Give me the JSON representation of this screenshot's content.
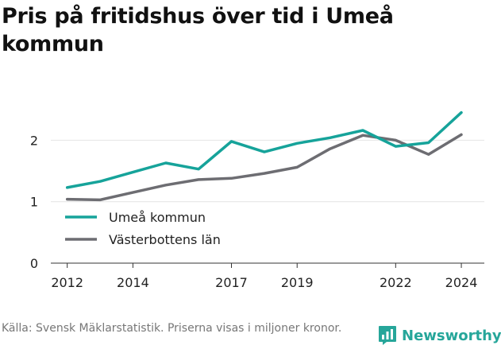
{
  "title": "Pris på fritidshus över tid i Umeå kommun",
  "source": "Källa: Svensk Mäklarstatistik. Priserna visas i miljoner kronor.",
  "brand": {
    "name": "Newsworthy",
    "icon": "newsworthy-logo-icon",
    "color": "#26a69a"
  },
  "chart_data": {
    "type": "line",
    "title": "Pris på fritidshus över tid i Umeå kommun",
    "xlabel": "",
    "ylabel": "",
    "xlim": [
      2011.5,
      2024.7
    ],
    "ylim": [
      0,
      2.6
    ],
    "x_ticks": [
      2012,
      2014,
      2017,
      2019,
      2022,
      2024
    ],
    "y_ticks": [
      0,
      1,
      2
    ],
    "grid": "horizontal",
    "legend": "middle-left",
    "x": [
      2012,
      2013,
      2014,
      2015,
      2016,
      2017,
      2018,
      2019,
      2020,
      2021,
      2022,
      2023,
      2024
    ],
    "series": [
      {
        "name": "Umeå kommun",
        "color": "#16a39a",
        "values": [
          1.23,
          1.33,
          1.48,
          1.63,
          1.53,
          1.98,
          1.81,
          1.95,
          2.04,
          2.16,
          1.9,
          1.96,
          2.45
        ]
      },
      {
        "name": "Västerbottens län",
        "color": "#6d6d72",
        "values": [
          1.04,
          1.03,
          1.15,
          1.27,
          1.36,
          1.38,
          1.46,
          1.56,
          1.86,
          2.08,
          2.0,
          1.77,
          2.09
        ]
      }
    ]
  }
}
